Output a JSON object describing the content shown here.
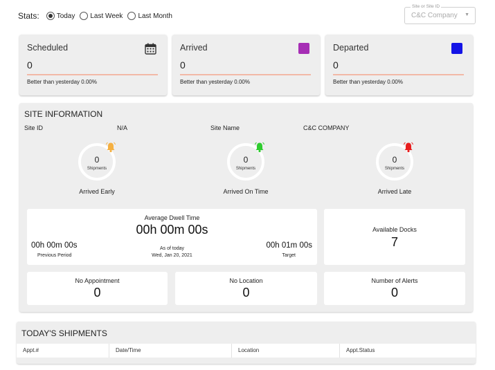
{
  "stats": {
    "label": "Stats:",
    "options": [
      {
        "label": "Today",
        "selected": true
      },
      {
        "label": "Last Week",
        "selected": false
      },
      {
        "label": "Last Month",
        "selected": false
      }
    ]
  },
  "site_select": {
    "floating_label": "Site or Site ID",
    "value": "C&C Company"
  },
  "cards": [
    {
      "title": "Scheduled",
      "value": "0",
      "sub": "Better than yesterday 0.00%",
      "icon": "calendar-icon"
    },
    {
      "title": "Arrived",
      "value": "0",
      "sub": "Better than yesterday 0.00%",
      "icon": "swatch",
      "color": "#a62eb5"
    },
    {
      "title": "Departed",
      "value": "0",
      "sub": "Better than yesterday 0.00%",
      "icon": "swatch",
      "color": "#1414e6"
    }
  ],
  "site_info": {
    "title": "SITE INFORMATION",
    "site_id_label": "Site ID",
    "site_id_value": "N/A",
    "site_name_label": "Site Name",
    "site_name_value": "C&C COMPANY",
    "gauges": [
      {
        "value": "0",
        "unit": "Shipments",
        "label": "Arrived Early",
        "bell_color": "#f5b041"
      },
      {
        "value": "0",
        "unit": "Shipments",
        "label": "Arrived On Time",
        "bell_color": "#2ecc2e"
      },
      {
        "value": "0",
        "unit": "Shipments",
        "label": "Arrived Late",
        "bell_color": "#e81d1d"
      }
    ],
    "dwell": {
      "title": "Average Dwell Time",
      "value": "00h 00m 00s",
      "previous_value": "00h 00m 00s",
      "previous_label": "Previous Period",
      "as_of": "As of today",
      "date": "Wed, Jan 20, 2021",
      "target_value": "00h 01m 00s",
      "target_label": "Target"
    },
    "available_docks": {
      "label": "Available Docks",
      "value": "7"
    },
    "no_appointment": {
      "label": "No Appointment",
      "value": "0"
    },
    "no_location": {
      "label": "No Location",
      "value": "0"
    },
    "alerts": {
      "label": "Number of Alerts",
      "value": "0"
    }
  },
  "shipments": {
    "title": "TODAY'S SHIPMENTS",
    "columns": [
      "Appt.#",
      "Date/Time",
      "Location",
      "Appt.Status"
    ]
  }
}
